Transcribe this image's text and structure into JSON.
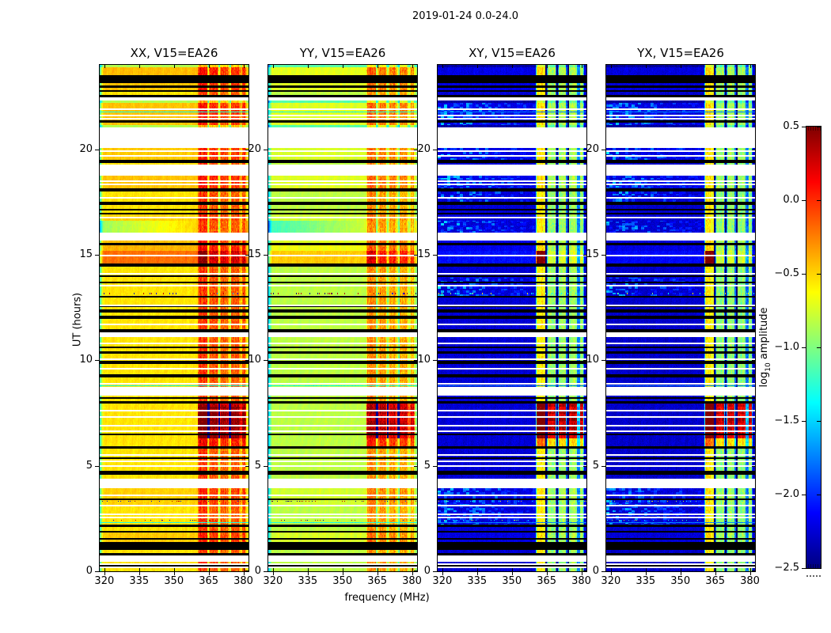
{
  "figure": {
    "background": "#ffffff"
  },
  "chart_data": {
    "type": "heatmap",
    "title": "2019-01-24 0.0-24.0",
    "xlabel": "frequency (MHz)",
    "ylabel": "UT (hours)",
    "panels": [
      {
        "label": "XX, V15=EA26",
        "pol": "XX"
      },
      {
        "label": "YY, V15=EA26",
        "pol": "YY"
      },
      {
        "label": "XY, V15=EA26",
        "pol": "XY"
      },
      {
        "label": "YX, V15=EA26",
        "pol": "YX"
      }
    ],
    "x_ticks": [
      320,
      335,
      350,
      365,
      380
    ],
    "y_ticks": [
      0,
      5,
      10,
      15,
      20
    ],
    "x_range": [
      318,
      382.2
    ],
    "y_range": [
      0,
      24
    ],
    "colorbar": {
      "label_main": "log",
      "label_sub": "10",
      "label_rest": " amplitude",
      "ticks": [
        "0.5",
        "0.0",
        "−0.5",
        "−1.0",
        "−1.5",
        "−2.0",
        "−2.5"
      ],
      "tick_values": [
        0.5,
        0.0,
        -0.5,
        -1.0,
        -1.5,
        -2.0,
        -2.5
      ],
      "range": [
        -2.5,
        0.5
      ],
      "colormap": "jet"
    },
    "render": {
      "value_range": [
        -2.5,
        0.5
      ],
      "base": {
        "XX": -0.55,
        "YY": -0.82,
        "XY": -2.25,
        "YX": -2.28
      },
      "warm_scale": {
        "XX": 1.0,
        "YY": 1.0,
        "XY": 0.45,
        "YX": 0.45
      },
      "band_range": [
        360.3,
        381.2
      ],
      "stripes": [
        [
          360.8,
          364.3
        ],
        [
          365.6,
          368.9
        ],
        [
          370.2,
          373.4
        ],
        [
          374.7,
          378.2
        ],
        [
          379.3,
          380.9
        ]
      ],
      "dark_cols": [
        364.9,
        369.6,
        374.2
      ],
      "band_level": {
        "n": {
          "XX": -0.15,
          "YY": -0.38,
          "XY": -0.95,
          "YX": -0.95
        },
        "m": {
          "XX": 0.05,
          "YY": -0.05,
          "XY": -0.55,
          "YX": -0.55
        },
        "s": {
          "XX": 0.38,
          "YY": 0.33,
          "XY": 0.27,
          "YX": 0.27
        }
      },
      "gap_drop": {
        "XX": 0.28,
        "YY": 0.33,
        "XY": 0.85,
        "YX": 0.85
      },
      "gap_drop_strong_mult": {
        "XX": 1.0,
        "YY": 1.0,
        "XY": 2.2,
        "YX": 2.2
      },
      "dark_col_drop": {
        "XX": 0.3,
        "YY": 0.3,
        "XY": 1.3,
        "YX": 1.3
      },
      "stripe0_boost": {
        "XX": 0.1,
        "YY": 0.1,
        "XY": 0.33,
        "YX": 0.33
      },
      "left_hot_boost": {
        "XX": 0.12,
        "YY": 0.12,
        "XY": 0.95,
        "YX": 0.95
      }
    },
    "segments": [
      {
        "u0": 0.0,
        "u1": 0.45,
        "t": "r"
      },
      {
        "u0": 0.45,
        "u1": 0.75,
        "t": "w"
      },
      {
        "u0": 0.75,
        "u1": 0.88,
        "t": "k"
      },
      {
        "u0": 0.88,
        "u1": 1.02,
        "t": "r"
      },
      {
        "u0": 1.02,
        "u1": 1.38,
        "t": "k"
      },
      {
        "u0": 1.38,
        "u1": 1.82,
        "t": "r",
        "warm": 0.08
      },
      {
        "u0": 1.82,
        "u1": 1.92,
        "t": "k"
      },
      {
        "u0": 1.92,
        "u1": 2.1,
        "t": "r"
      },
      {
        "u0": 2.1,
        "u1": 2.22,
        "t": "k"
      },
      {
        "u0": 2.22,
        "u1": 3.08,
        "t": "r",
        "tex": 1
      },
      {
        "u0": 3.08,
        "u1": 3.16,
        "t": "w"
      },
      {
        "u0": 3.16,
        "u1": 3.95,
        "t": "r",
        "warm": 0.06,
        "tex": 1
      },
      {
        "u0": 3.95,
        "u1": 4.38,
        "t": "w"
      },
      {
        "u0": 4.38,
        "u1": 4.58,
        "t": "r"
      },
      {
        "u0": 4.58,
        "u1": 4.75,
        "t": "k"
      },
      {
        "u0": 4.75,
        "u1": 5.82,
        "t": "r"
      },
      {
        "u0": 5.82,
        "u1": 5.92,
        "t": "k"
      },
      {
        "u0": 5.92,
        "u1": 6.3,
        "t": "r",
        "band": "m"
      },
      {
        "u0": 6.3,
        "u1": 7.95,
        "t": "r",
        "band": "s"
      },
      {
        "u0": 7.95,
        "u1": 8.07,
        "t": "k"
      },
      {
        "u0": 8.07,
        "u1": 8.32,
        "t": "r"
      },
      {
        "u0": 8.32,
        "u1": 8.72,
        "t": "w"
      },
      {
        "u0": 8.72,
        "u1": 9.2,
        "t": "r"
      },
      {
        "u0": 9.2,
        "u1": 9.35,
        "t": "k"
      },
      {
        "u0": 9.35,
        "u1": 9.84,
        "t": "r"
      },
      {
        "u0": 9.84,
        "u1": 9.96,
        "t": "k"
      },
      {
        "u0": 9.96,
        "u1": 10.3,
        "t": "r"
      },
      {
        "u0": 10.3,
        "u1": 10.44,
        "t": "k"
      },
      {
        "u0": 10.44,
        "u1": 11.1,
        "t": "r"
      },
      {
        "u0": 11.1,
        "u1": 11.34,
        "t": "w"
      },
      {
        "u0": 11.34,
        "u1": 11.48,
        "t": "k"
      },
      {
        "u0": 11.48,
        "u1": 11.95,
        "t": "r"
      },
      {
        "u0": 11.95,
        "u1": 12.1,
        "t": "k"
      },
      {
        "u0": 12.1,
        "u1": 12.26,
        "t": "r"
      },
      {
        "u0": 12.26,
        "u1": 12.42,
        "t": "k"
      },
      {
        "u0": 12.42,
        "u1": 12.98,
        "t": "r"
      },
      {
        "u0": 12.98,
        "u1": 13.06,
        "t": "k"
      },
      {
        "u0": 13.06,
        "u1": 13.92,
        "t": "r",
        "tex": 1
      },
      {
        "u0": 13.92,
        "u1": 14.42,
        "t": "r"
      },
      {
        "u0": 14.42,
        "u1": 14.58,
        "t": "k"
      },
      {
        "u0": 14.58,
        "u1": 15.2,
        "t": "r",
        "warm": 0.35
      },
      {
        "u0": 15.2,
        "u1": 15.46,
        "t": "r",
        "warm": 0.15
      },
      {
        "u0": 15.46,
        "u1": 15.56,
        "t": "k"
      },
      {
        "u0": 15.56,
        "u1": 15.68,
        "t": "r",
        "warm": 0.1
      },
      {
        "u0": 15.68,
        "u1": 16.06,
        "t": "w"
      },
      {
        "u0": 16.06,
        "u1": 16.6,
        "t": "r",
        "grad": 1,
        "tex": 1
      },
      {
        "u0": 16.6,
        "u1": 16.9,
        "t": "r",
        "warm": 0.05
      },
      {
        "u0": 16.9,
        "u1": 17.0,
        "t": "k"
      },
      {
        "u0": 17.0,
        "u1": 17.36,
        "t": "r"
      },
      {
        "u0": 17.36,
        "u1": 17.5,
        "t": "k"
      },
      {
        "u0": 17.5,
        "u1": 18.0,
        "t": "r",
        "tex": 1
      },
      {
        "u0": 18.0,
        "u1": 18.16,
        "t": "k"
      },
      {
        "u0": 18.16,
        "u1": 18.75,
        "t": "r",
        "warm": 0.1,
        "tex": 1
      },
      {
        "u0": 18.75,
        "u1": 19.28,
        "t": "w"
      },
      {
        "u0": 19.28,
        "u1": 19.36,
        "t": "r"
      },
      {
        "u0": 19.36,
        "u1": 19.5,
        "t": "k"
      },
      {
        "u0": 19.5,
        "u1": 20.08,
        "t": "r",
        "warm": 0.08,
        "tex": 1
      },
      {
        "u0": 20.08,
        "u1": 21.04,
        "t": "w"
      },
      {
        "u0": 21.04,
        "u1": 21.16,
        "t": "r",
        "warm": -0.3
      },
      {
        "u0": 21.16,
        "u1": 22.2,
        "t": "r",
        "warm": 0.1,
        "tex": 1
      },
      {
        "u0": 22.2,
        "u1": 22.32,
        "t": "r",
        "warm": -0.3
      },
      {
        "u0": 22.32,
        "u1": 22.46,
        "t": "w"
      },
      {
        "u0": 22.46,
        "u1": 22.56,
        "t": "k"
      },
      {
        "u0": 22.56,
        "u1": 22.72,
        "t": "r"
      },
      {
        "u0": 22.72,
        "u1": 22.8,
        "t": "k"
      },
      {
        "u0": 22.8,
        "u1": 22.92,
        "t": "r",
        "warm": 0.1
      },
      {
        "u0": 22.92,
        "u1": 23.02,
        "t": "k"
      },
      {
        "u0": 23.02,
        "u1": 23.12,
        "t": "r",
        "warm": 0.1
      },
      {
        "u0": 23.12,
        "u1": 23.5,
        "t": "k"
      },
      {
        "u0": 23.5,
        "u1": 23.9,
        "t": "r",
        "warm": 0.12
      },
      {
        "u0": 23.9,
        "u1": 24.0,
        "t": "r",
        "warm": -0.3
      }
    ],
    "white_lines": [
      0.18,
      0.35,
      2.55,
      2.7,
      3.6,
      5.0,
      5.2,
      5.5,
      6.65,
      6.9,
      7.3,
      7.6,
      8.9,
      9.6,
      10.05,
      10.8,
      11.7,
      12.6,
      13.55,
      14.1,
      14.95,
      16.75,
      17.7,
      18.35,
      18.5,
      19.7,
      19.9,
      21.45,
      21.6,
      21.9
    ],
    "black_lines": [
      0.25,
      1.55,
      3.42,
      5.35,
      6.48,
      8.2,
      10.62,
      12.55,
      13.7,
      14.0,
      17.15,
      21.32
    ],
    "green_lines": [
      2.3,
      8.78,
      11.72,
      21.78
    ],
    "dot_rows": [
      2.42,
      3.32,
      13.17
    ]
  }
}
